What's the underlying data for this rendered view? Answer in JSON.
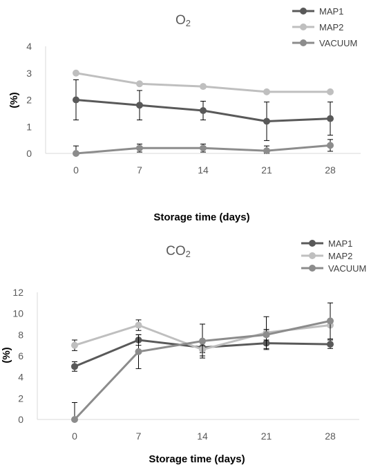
{
  "chart_data": [
    {
      "type": "line",
      "title": "O",
      "title_subscript": "2",
      "xlabel": "Storage time (days)",
      "ylabel": "(%)",
      "x": [
        0,
        7,
        14,
        21,
        28
      ],
      "ylim": [
        0,
        4
      ],
      "yticks": [
        0,
        1,
        2,
        3,
        4
      ],
      "grid": false,
      "legend_position": "top-right",
      "series": [
        {
          "name": "MAP1",
          "color": "#595959",
          "values": [
            2.0,
            1.8,
            1.6,
            1.2,
            1.3
          ],
          "errors": [
            0.75,
            0.55,
            0.35,
            0.72,
            0.62
          ]
        },
        {
          "name": "MAP2",
          "color": "#bfbfbf",
          "values": [
            3.0,
            2.6,
            2.5,
            2.3,
            2.3
          ],
          "errors": [
            0.0,
            0.0,
            0.0,
            0.0,
            0.0
          ]
        },
        {
          "name": "VACUUM",
          "color": "#8c8c8c",
          "values": [
            0.0,
            0.2,
            0.2,
            0.1,
            0.3
          ],
          "errors": [
            0.28,
            0.15,
            0.15,
            0.18,
            0.22
          ]
        }
      ]
    },
    {
      "type": "line",
      "title": "CO",
      "title_subscript": "2",
      "xlabel": "Storage time (days)",
      "ylabel": "(%)",
      "x": [
        0,
        7,
        14,
        21,
        28
      ],
      "ylim": [
        0,
        12
      ],
      "yticks": [
        0,
        2,
        4,
        6,
        8,
        10,
        12
      ],
      "grid": false,
      "legend_position": "top-right",
      "series": [
        {
          "name": "MAP1",
          "color": "#595959",
          "values": [
            5.0,
            7.5,
            6.8,
            7.2,
            7.1
          ],
          "errors": [
            0.45,
            0.5,
            0.5,
            0.6,
            0.4
          ]
        },
        {
          "name": "MAP2",
          "color": "#bfbfbf",
          "values": [
            7.0,
            8.9,
            6.6,
            8.2,
            8.9
          ],
          "errors": [
            0.5,
            0.5,
            0.6,
            1.5,
            0.0
          ]
        },
        {
          "name": "VACUUM",
          "color": "#8c8c8c",
          "values": [
            0.0,
            6.4,
            7.4,
            8.0,
            9.3
          ],
          "errors": [
            1.6,
            1.6,
            1.6,
            0.5,
            1.7
          ]
        }
      ]
    }
  ]
}
